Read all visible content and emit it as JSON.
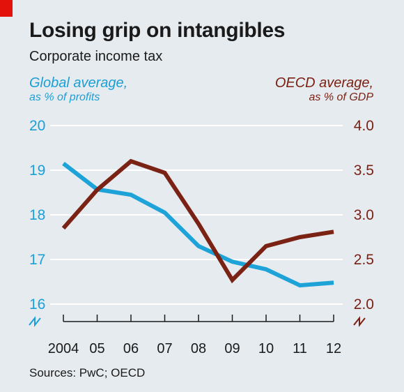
{
  "title": "Losing grip on intangibles",
  "subtitle": "Corporate income tax",
  "left_axis_title": [
    "Global average,",
    "as % of profits"
  ],
  "right_axis_title": [
    "OECD average,",
    "as % of GDP"
  ],
  "source": "Sources: PwC; OECD",
  "colors": {
    "global": "#1ea3d8",
    "oecd": "#7a2315",
    "left_axis": "#1a9fd6",
    "right_axis": "#7a1f12",
    "grid": "#ffffff"
  },
  "chart_data": {
    "type": "line",
    "categories": [
      "2004",
      "05",
      "06",
      "07",
      "08",
      "09",
      "10",
      "11",
      "12"
    ],
    "x": [
      2004,
      2005,
      2006,
      2007,
      2008,
      2009,
      2010,
      2011,
      2012
    ],
    "left_axis": {
      "ylim": [
        16,
        20
      ],
      "ticks": [
        "20",
        "19",
        "18",
        "17",
        "16"
      ],
      "tick_values": [
        20,
        19,
        18,
        17,
        16
      ],
      "broken": true
    },
    "right_axis": {
      "ylim": [
        2.0,
        4.0
      ],
      "ticks": [
        "4.0",
        "3.5",
        "3.0",
        "2.5",
        "2.0"
      ],
      "tick_values": [
        4.0,
        3.5,
        3.0,
        2.5,
        2.0
      ],
      "broken": true
    },
    "series": [
      {
        "axis": "left",
        "values": [
          19.15,
          18.57,
          18.45,
          18.05,
          17.3,
          16.95,
          16.78,
          16.42,
          16.48
        ]
      },
      {
        "axis": "right",
        "values": [
          2.85,
          3.28,
          3.6,
          3.47,
          2.9,
          2.27,
          2.65,
          2.75,
          2.81
        ]
      }
    ],
    "grid": true,
    "legend": "axis titles"
  }
}
